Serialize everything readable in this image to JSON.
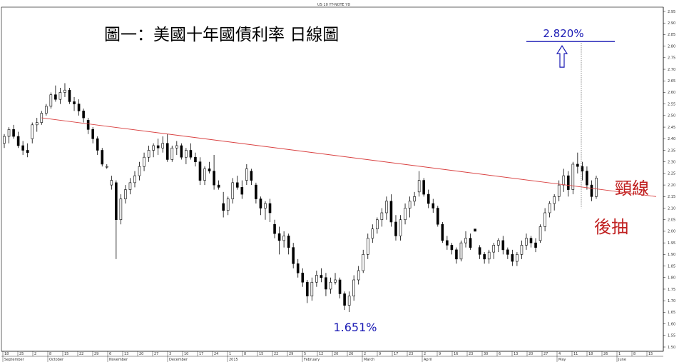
{
  "header": {
    "symbol": "US 10 YT-NOTE YD"
  },
  "title": "圖一：美國十年國債利率  日線圖",
  "annotations": {
    "target_label": "2.820%",
    "low_label": "1.651%",
    "neckline_label": "頸線",
    "pullback_label": "後抽"
  },
  "colors": {
    "neckline": "#d94040",
    "target": "#1a1ab4",
    "candle_up_fill": "#ffffff",
    "candle_down_fill": "#000000",
    "text_red": "#c02020",
    "grid": "#000000"
  },
  "chart_data": {
    "type": "candlestick",
    "title": "圖一：美國十年國債利率  日線圖",
    "ylim": [
      1.5,
      2.95
    ],
    "yticks": [
      "1.50",
      "1.55",
      "1.60",
      "1.65",
      "1.70",
      "1.75",
      "1.80",
      "1.85",
      "1.90",
      "1.95",
      "2.00",
      "2.05",
      "2.10",
      "2.15",
      "2.20",
      "2.25",
      "2.30",
      "2.35",
      "2.40",
      "2.45",
      "2.50",
      "2.55",
      "2.60",
      "2.65",
      "2.70",
      "2.75",
      "2.80",
      "2.85",
      "2.90",
      "2.95"
    ],
    "x_day_ticks": [
      "18",
      "25",
      "2",
      "8",
      "15",
      "22",
      "29",
      "6",
      "13",
      "20",
      "27",
      "3",
      "10",
      "17",
      "24",
      "1",
      "8",
      "15",
      "22",
      "29",
      "5",
      "12",
      "20",
      "26",
      "2",
      "9",
      "17",
      "23",
      "2",
      "9",
      "16",
      "23",
      "30",
      "6",
      "13",
      "20",
      "27",
      "4",
      "11",
      "18",
      "26",
      "1",
      "8",
      "15"
    ],
    "x_month_labels": [
      "September",
      "October",
      "November",
      "December",
      "2015",
      "February",
      "March",
      "April",
      "May",
      "June"
    ],
    "neckline": {
      "start": 2.49,
      "end": 2.15
    },
    "target_value": 2.82,
    "low_value": 1.651,
    "candles": [
      [
        2.38,
        2.42,
        2.36,
        2.41
      ],
      [
        2.41,
        2.45,
        2.38,
        2.44
      ],
      [
        2.44,
        2.46,
        2.4,
        2.41
      ],
      [
        2.41,
        2.43,
        2.36,
        2.37
      ],
      [
        2.37,
        2.39,
        2.33,
        2.35
      ],
      [
        2.35,
        2.38,
        2.32,
        2.34
      ],
      [
        2.4,
        2.47,
        2.38,
        2.46
      ],
      [
        2.46,
        2.49,
        2.43,
        2.47
      ],
      [
        2.47,
        2.52,
        2.46,
        2.51
      ],
      [
        2.51,
        2.55,
        2.5,
        2.54
      ],
      [
        2.54,
        2.6,
        2.53,
        2.59
      ],
      [
        2.59,
        2.63,
        2.56,
        2.57
      ],
      [
        2.57,
        2.62,
        2.55,
        2.6
      ],
      [
        2.6,
        2.64,
        2.58,
        2.61
      ],
      [
        2.61,
        2.62,
        2.55,
        2.56
      ],
      [
        2.56,
        2.58,
        2.52,
        2.55
      ],
      [
        2.55,
        2.57,
        2.5,
        2.52
      ],
      [
        2.52,
        2.53,
        2.47,
        2.49
      ],
      [
        2.48,
        2.49,
        2.42,
        2.44
      ],
      [
        2.44,
        2.45,
        2.38,
        2.4
      ],
      [
        2.4,
        2.41,
        2.33,
        2.35
      ],
      [
        2.35,
        2.36,
        2.28,
        2.29
      ],
      [
        2.28,
        2.29,
        2.27,
        2.28
      ],
      [
        2.2,
        2.24,
        2.18,
        2.22
      ],
      [
        2.21,
        2.22,
        1.88,
        2.05
      ],
      [
        2.05,
        2.16,
        2.03,
        2.14
      ],
      [
        2.14,
        2.2,
        2.12,
        2.18
      ],
      [
        2.18,
        2.23,
        2.16,
        2.21
      ],
      [
        2.21,
        2.26,
        2.19,
        2.24
      ],
      [
        2.24,
        2.3,
        2.22,
        2.28
      ],
      [
        2.28,
        2.34,
        2.26,
        2.32
      ],
      [
        2.32,
        2.37,
        2.3,
        2.35
      ],
      [
        2.35,
        2.38,
        2.32,
        2.37
      ],
      [
        2.37,
        2.4,
        2.33,
        2.36
      ],
      [
        2.36,
        2.41,
        2.34,
        2.38
      ],
      [
        2.38,
        2.42,
        2.3,
        2.31
      ],
      [
        2.31,
        2.37,
        2.3,
        2.36
      ],
      [
        2.36,
        2.39,
        2.33,
        2.37
      ],
      [
        2.37,
        2.38,
        2.31,
        2.32
      ],
      [
        2.32,
        2.36,
        2.29,
        2.35
      ],
      [
        2.35,
        2.38,
        2.31,
        2.32
      ],
      [
        2.32,
        2.34,
        2.28,
        2.3
      ],
      [
        2.3,
        2.32,
        2.2,
        2.22
      ],
      [
        2.22,
        2.28,
        2.2,
        2.27
      ],
      [
        2.27,
        2.3,
        2.25,
        2.26
      ],
      [
        2.26,
        2.33,
        2.18,
        2.2
      ],
      [
        2.2,
        2.22,
        2.18,
        2.19
      ],
      [
        2.12,
        2.17,
        2.06,
        2.09
      ],
      [
        2.09,
        2.15,
        2.07,
        2.14
      ],
      [
        2.14,
        2.23,
        2.12,
        2.21
      ],
      [
        2.21,
        2.24,
        2.18,
        2.19
      ],
      [
        2.19,
        2.22,
        2.14,
        2.16
      ],
      [
        2.22,
        2.29,
        2.2,
        2.27
      ],
      [
        2.26,
        2.27,
        2.2,
        2.22
      ],
      [
        2.2,
        2.21,
        2.12,
        2.14
      ],
      [
        2.14,
        2.15,
        2.07,
        2.1
      ],
      [
        2.1,
        2.13,
        2.05,
        2.12
      ],
      [
        2.12,
        2.14,
        2.04,
        2.08
      ],
      [
        2.03,
        2.05,
        1.97,
        1.99
      ],
      [
        1.99,
        2.02,
        1.9,
        1.96
      ],
      [
        1.96,
        2.0,
        1.93,
        1.98
      ],
      [
        1.98,
        1.99,
        1.9,
        1.93
      ],
      [
        1.93,
        1.95,
        1.84,
        1.86
      ],
      [
        1.86,
        1.88,
        1.8,
        1.82
      ],
      [
        1.82,
        1.84,
        1.76,
        1.78
      ],
      [
        1.78,
        1.79,
        1.69,
        1.72
      ],
      [
        1.72,
        1.8,
        1.7,
        1.78
      ],
      [
        1.78,
        1.83,
        1.76,
        1.81
      ],
      [
        1.81,
        1.84,
        1.78,
        1.8
      ],
      [
        1.8,
        1.82,
        1.72,
        1.75
      ],
      [
        1.75,
        1.8,
        1.73,
        1.78
      ],
      [
        1.78,
        1.82,
        1.77,
        1.79
      ],
      [
        1.79,
        1.8,
        1.71,
        1.73
      ],
      [
        1.73,
        1.74,
        1.66,
        1.68
      ],
      [
        1.68,
        1.74,
        1.651,
        1.72
      ],
      [
        1.72,
        1.81,
        1.7,
        1.79
      ],
      [
        1.79,
        1.85,
        1.77,
        1.83
      ],
      [
        1.83,
        1.92,
        1.82,
        1.9
      ],
      [
        1.9,
        1.99,
        1.88,
        1.97
      ],
      [
        1.97,
        2.03,
        1.95,
        2.01
      ],
      [
        2.01,
        2.06,
        1.99,
        2.05
      ],
      [
        2.05,
        2.1,
        2.02,
        2.08
      ],
      [
        2.08,
        2.15,
        2.05,
        2.13
      ],
      [
        2.13,
        2.16,
        2.02,
        2.04
      ],
      [
        2.04,
        2.07,
        1.96,
        1.98
      ],
      [
        1.98,
        2.07,
        1.96,
        2.05
      ],
      [
        2.05,
        2.12,
        2.03,
        2.1
      ],
      [
        2.1,
        2.15,
        2.06,
        2.13
      ],
      [
        2.13,
        2.17,
        2.11,
        2.15
      ],
      [
        2.17,
        2.26,
        2.15,
        2.22
      ],
      [
        2.22,
        2.23,
        2.15,
        2.16
      ],
      [
        2.16,
        2.18,
        2.1,
        2.12
      ],
      [
        2.12,
        2.14,
        2.08,
        2.1
      ],
      [
        2.1,
        2.11,
        2.02,
        2.03
      ],
      [
        2.03,
        2.04,
        1.95,
        1.96
      ],
      [
        1.96,
        1.98,
        1.92,
        1.94
      ],
      [
        1.94,
        1.95,
        1.9,
        1.92
      ],
      [
        1.92,
        1.93,
        1.86,
        1.88
      ],
      [
        1.88,
        1.96,
        1.87,
        1.95
      ],
      [
        1.95,
        2.0,
        1.93,
        1.97
      ],
      [
        1.97,
        1.99,
        1.92,
        1.93
      ],
      [
        2.01,
        2.01,
        2.0,
        2.0
      ],
      [
        1.93,
        1.94,
        1.88,
        1.9
      ],
      [
        1.9,
        1.91,
        1.86,
        1.88
      ],
      [
        1.88,
        1.92,
        1.86,
        1.91
      ],
      [
        1.91,
        1.95,
        1.88,
        1.94
      ],
      [
        1.94,
        1.97,
        1.91,
        1.96
      ],
      [
        1.96,
        1.98,
        1.9,
        1.92
      ],
      [
        1.92,
        1.93,
        1.88,
        1.9
      ],
      [
        1.9,
        1.92,
        1.85,
        1.87
      ],
      [
        1.87,
        1.91,
        1.85,
        1.9
      ],
      [
        1.9,
        1.96,
        1.88,
        1.94
      ],
      [
        1.94,
        1.99,
        1.92,
        1.97
      ],
      [
        1.97,
        1.98,
        1.93,
        1.95
      ],
      [
        1.95,
        1.97,
        1.91,
        1.93
      ],
      [
        1.96,
        2.03,
        1.95,
        2.02
      ],
      [
        2.02,
        2.1,
        2.0,
        2.08
      ],
      [
        2.08,
        2.13,
        2.06,
        2.12
      ],
      [
        2.12,
        2.16,
        2.09,
        2.15
      ],
      [
        2.15,
        2.22,
        2.13,
        2.2
      ],
      [
        2.2,
        2.27,
        2.17,
        2.24
      ],
      [
        2.24,
        2.26,
        2.15,
        2.18
      ],
      [
        2.18,
        2.3,
        2.16,
        2.29
      ],
      [
        2.29,
        2.34,
        2.25,
        2.28
      ],
      [
        2.28,
        2.3,
        2.22,
        2.26
      ],
      [
        2.26,
        2.28,
        2.18,
        2.2
      ],
      [
        2.2,
        2.22,
        2.13,
        2.15
      ],
      [
        2.15,
        2.24,
        2.14,
        2.23
      ]
    ]
  }
}
